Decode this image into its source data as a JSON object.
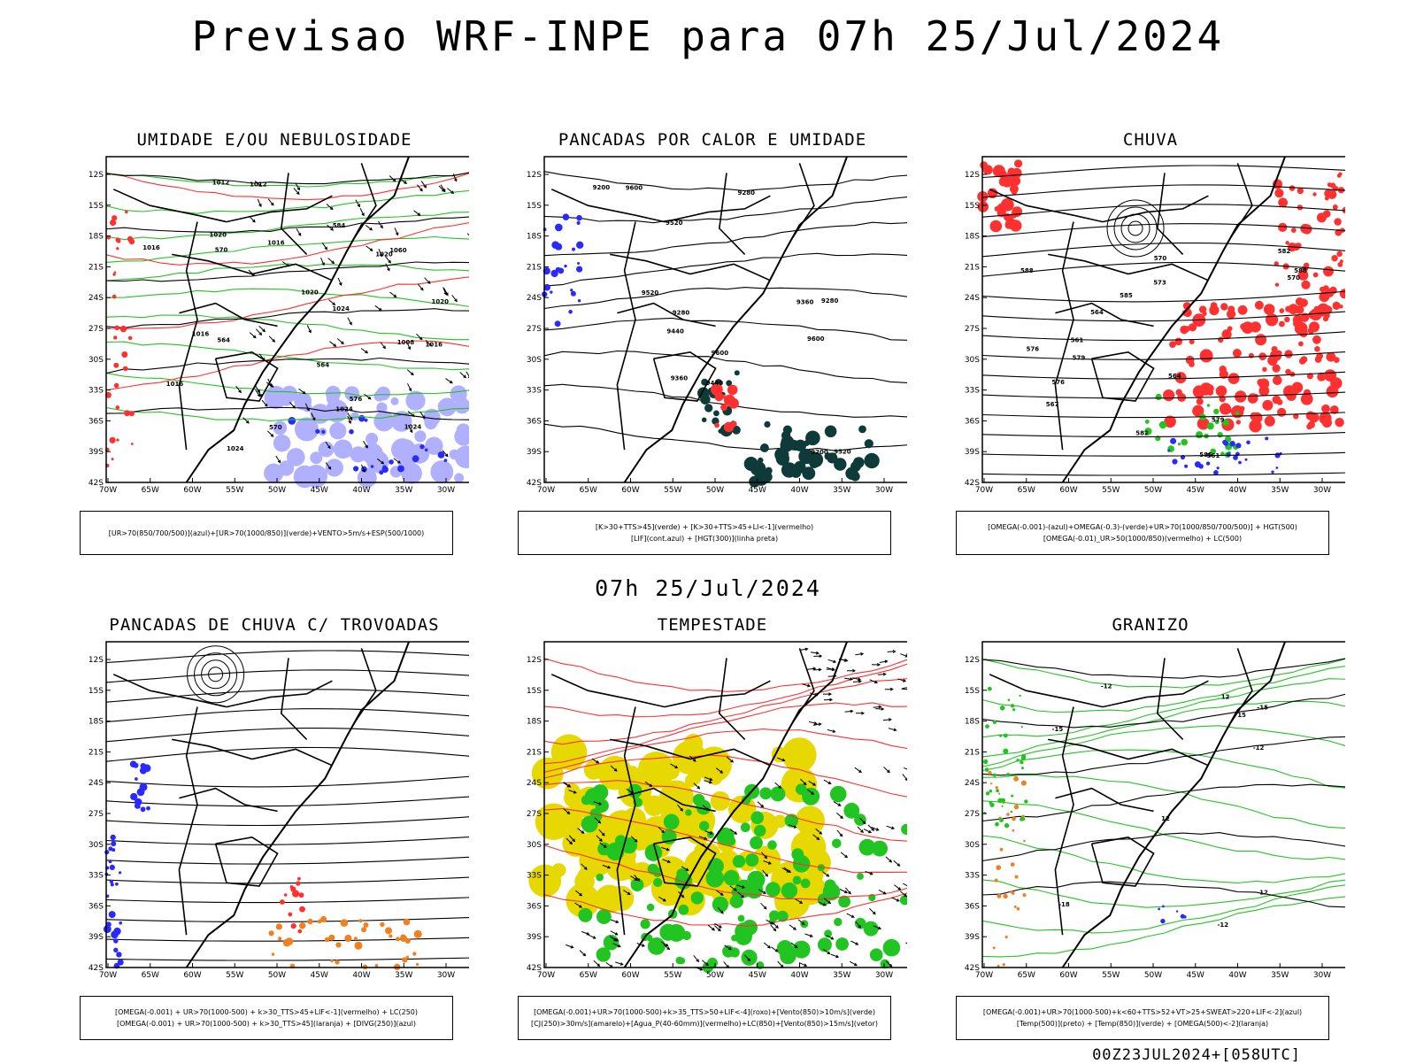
{
  "title": "Previsao WRF-INPE  para 07h 25/Jul/2024",
  "mid_title": "07h 25/Jul/2024",
  "footer": "00Z23JUL2024+[058UTC]",
  "axes": {
    "lat_labels": [
      "12S",
      "15S",
      "18S",
      "21S",
      "24S",
      "27S",
      "30S",
      "33S",
      "36S",
      "39S",
      "42S"
    ],
    "lon_labels": [
      "70W",
      "65W",
      "60W",
      "55W",
      "50W",
      "45W",
      "40W",
      "35W",
      "30W"
    ]
  },
  "colors": {
    "blue": "#2a2aff",
    "green": "#22c422",
    "red": "#ff3030",
    "orange": "#f08020",
    "yellow": "#e6d800",
    "dark_teal": "#0e3a3a",
    "lavender": "#b0b0ff",
    "black": "#000000"
  },
  "panels": [
    {
      "id": "umidade",
      "title": "UMIDADE E/OU NEBULOSIDADE",
      "legend": [
        "[UR>70(850/700/500)](azul)+[UR>70(1000/850)](verde)+VENTO>5m/s+ESP(500/1000)"
      ],
      "labels": [
        "1016",
        "1024",
        "1020",
        "1016",
        "1020",
        "1024",
        "1020",
        "1024",
        "1020",
        "1024",
        "1016",
        "1012",
        "1016",
        "1008",
        "1012",
        "1016",
        "1060",
        "576",
        "570",
        "564",
        "564",
        "584",
        "570"
      ]
    },
    {
      "id": "pancadas-calor",
      "title": "PANCADAS POR CALOR E UMIDADE",
      "legend": [
        "[K>30+TTS>45](verde) + [K>30+TTS>45+LI<-1](vermelho)",
        "[LIF](cont.azul) + [HGT(300)](linha preta)"
      ],
      "labels": [
        "9600",
        "9520",
        "9600",
        "9600",
        "9520",
        "9520",
        "9440",
        "9440",
        "9360",
        "9360",
        "9280",
        "9280",
        "9200",
        "9200",
        "9280"
      ]
    },
    {
      "id": "chuva",
      "title": "CHUVA",
      "legend": [
        "[OMEGA(-0.001)-(azul)+OMEGA(-0.3)-(verde)+UR>70(1000/850/700/500)] + HGT(500)",
        "[OMEGA(-0.01)_UR>50(1000/850)(vermelho) + LC(500)"
      ],
      "labels": [
        "588",
        "585",
        "582",
        "579",
        "576",
        "573",
        "570",
        "567",
        "564",
        "561",
        "585",
        "582",
        "579",
        "576",
        "570",
        "564",
        "561",
        "588"
      ]
    },
    {
      "id": "trovoadas",
      "title": "PANCADAS DE CHUVA C/ TROVOADAS",
      "legend": [
        "[OMEGA(-0.001) + UR>70(1000-500) + k>30_TTS>45+LIF<-1](vermelho) + LC(250)",
        "[OMEGA(-0.001) + UR>70(1000-500) + k>30_TTS>45](laranja) + [DIVG(250)](azul)"
      ],
      "labels": []
    },
    {
      "id": "tempestade",
      "title": "TEMPESTADE",
      "legend": [
        "[OMEGA(-0.001)+UR>70(1000-500)+k>35_TTS>50+LIF<-4](roxo)+[Vento(850)>10m/s](verde)",
        "[CJ(250)>30m/s](amarelo)+[Agua_P(40-60mm)](vermelho)+LC(850)+[Vento(850)>15m/s](vetor)"
      ],
      "labels": []
    },
    {
      "id": "granizo",
      "title": "GRANIZO",
      "legend": [
        "[OMEGA(-0.001)+UR>70(1000-500)+k<60+TTS>52+VT>25+SWEAT>220+LIF<-2](azul)",
        "[Temp(500)](preto) + [Temp(850)](verde) + [OMEGA(500)<-2](laranja)"
      ],
      "labels": [
        "-12",
        "-12",
        "-12",
        "-15",
        "-15",
        "-18",
        "12",
        "12",
        "12",
        "15"
      ]
    }
  ]
}
